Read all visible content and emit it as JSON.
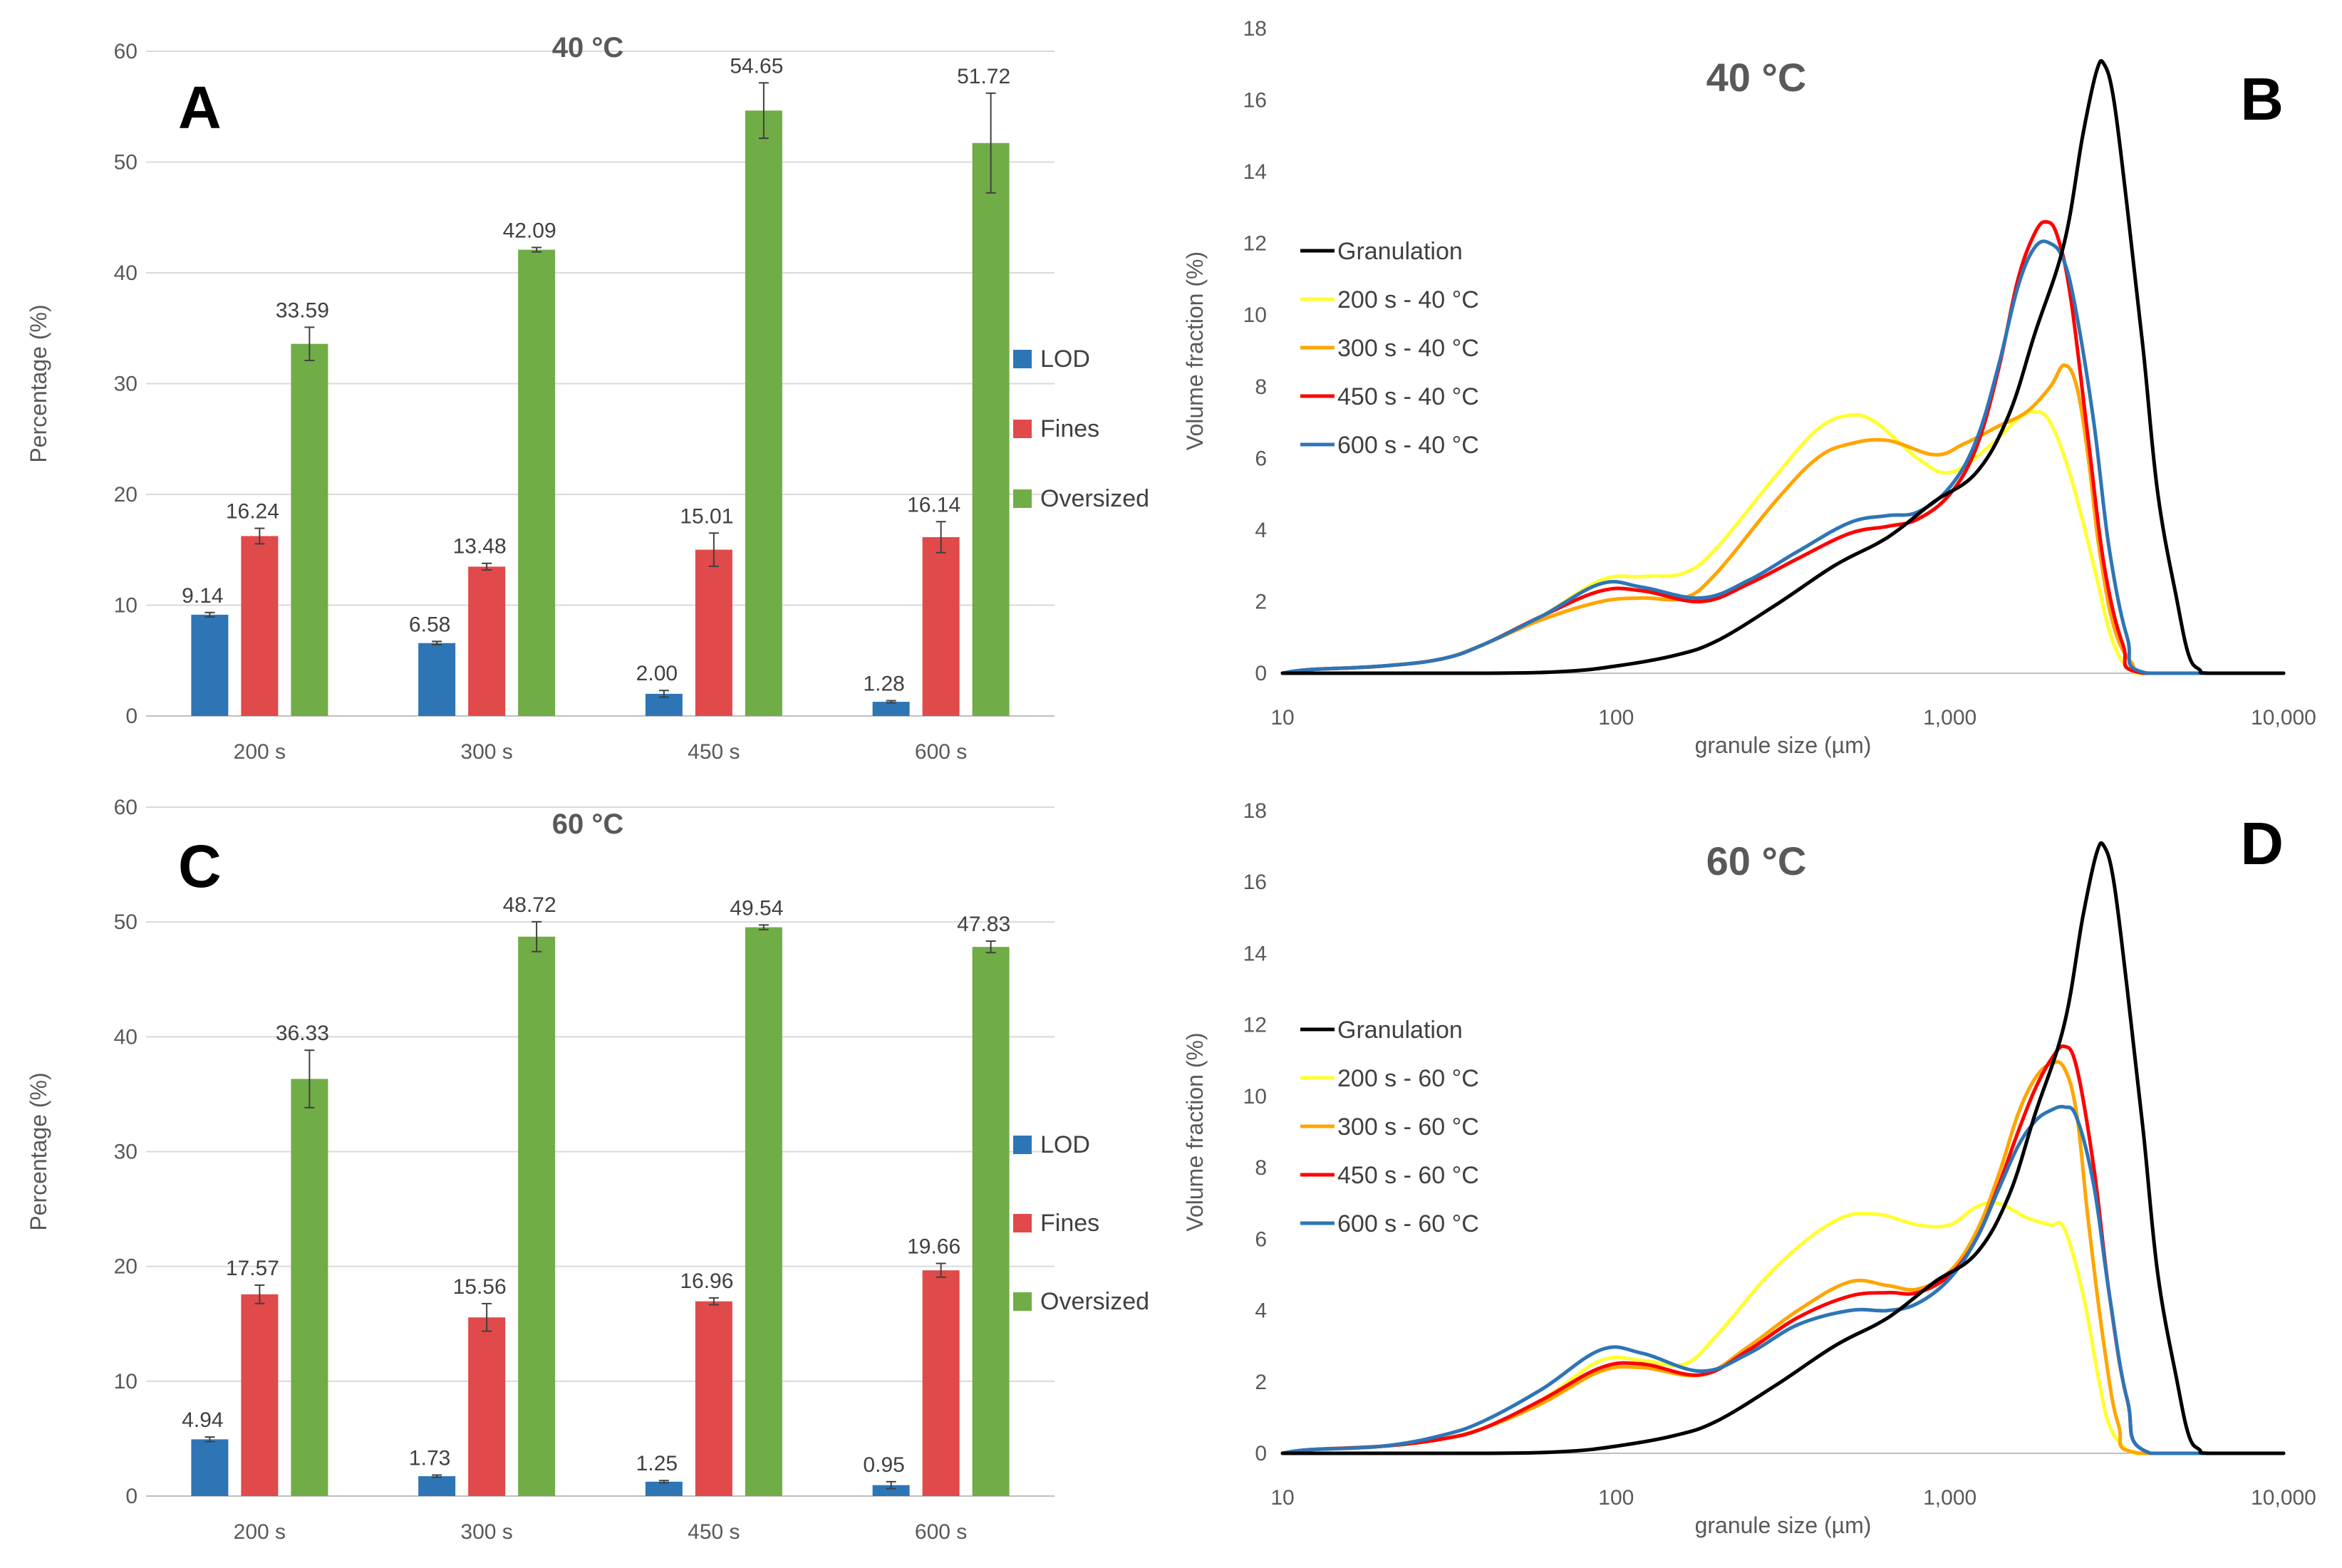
{
  "chart_data": [
    {
      "id": "A",
      "type": "bar",
      "title": "40 °C",
      "panel_letter": "A",
      "categories": [
        "200 s",
        "300 s",
        "450 s",
        "600 s"
      ],
      "series": [
        {
          "name": "LOD",
          "color": "#2E75B6",
          "values": [
            9.14,
            6.58,
            2.0,
            1.28
          ],
          "labels": [
            "9.14",
            "6.58",
            "2.00",
            "1.28"
          ],
          "errors": [
            0.2,
            0.15,
            0.3,
            0.1
          ]
        },
        {
          "name": "Fines",
          "color": "#E04A4A",
          "values": [
            16.24,
            13.48,
            15.01,
            16.14
          ],
          "labels": [
            "16.24",
            "13.48",
            "15.01",
            "16.14"
          ],
          "errors": [
            0.7,
            0.3,
            1.5,
            1.4
          ]
        },
        {
          "name": "Oversized",
          "color": "#70AD47",
          "values": [
            33.59,
            42.09,
            54.65,
            51.72
          ],
          "labels": [
            "33.59",
            "42.09",
            "54.65",
            "51.72"
          ],
          "errors": [
            1.5,
            0.2,
            2.5,
            4.5
          ]
        }
      ],
      "xlabel": "",
      "ylabel": "Percentage (%)",
      "ylim": [
        0,
        60
      ],
      "yticks": [
        "0",
        "10",
        "20",
        "30",
        "40",
        "50",
        "60"
      ],
      "legend": "right"
    },
    {
      "id": "C",
      "type": "bar",
      "title": "60 °C",
      "panel_letter": "C",
      "categories": [
        "200 s",
        "300 s",
        "450 s",
        "600 s"
      ],
      "series": [
        {
          "name": "LOD",
          "color": "#2E75B6",
          "values": [
            4.94,
            1.73,
            1.25,
            0.95
          ],
          "labels": [
            "4.94",
            "1.73",
            "1.25",
            "0.95"
          ],
          "errors": [
            0.2,
            0.1,
            0.1,
            0.3
          ]
        },
        {
          "name": "Fines",
          "color": "#E04A4A",
          "values": [
            17.57,
            15.56,
            16.96,
            19.66
          ],
          "labels": [
            "17.57",
            "15.56",
            "16.96",
            "19.66"
          ],
          "errors": [
            0.8,
            1.2,
            0.3,
            0.6
          ]
        },
        {
          "name": "Oversized",
          "color": "#70AD47",
          "values": [
            36.33,
            48.72,
            49.54,
            47.83
          ],
          "labels": [
            "36.33",
            "48.72",
            "49.54",
            "47.83"
          ],
          "errors": [
            2.5,
            1.3,
            0.2,
            0.5
          ]
        }
      ],
      "xlabel": "",
      "ylabel": "Percentage (%)",
      "ylim": [
        0,
        60
      ],
      "yticks": [
        "0",
        "10",
        "20",
        "30",
        "40",
        "50",
        "60"
      ],
      "legend": "right"
    },
    {
      "id": "B",
      "type": "line",
      "title": "40 °C",
      "panel_letter": "B",
      "xscale": "log",
      "xlim": [
        10,
        10000
      ],
      "ylim": [
        0,
        18
      ],
      "xticks": [
        10,
        100,
        1000,
        10000
      ],
      "xticklabels": [
        "10",
        "100",
        "1,000",
        "10,000"
      ],
      "yticks": [
        "0",
        "2",
        "4",
        "6",
        "8",
        "10",
        "12",
        "14",
        "16",
        "18"
      ],
      "xlabel": "granule size (µm)",
      "ylabel": "Volume fraction (%)",
      "legend": "middle-left",
      "series": [
        {
          "name": "Granulation",
          "color": "#000000",
          "x": [
            10,
            40,
            70,
            100,
            150,
            200,
            300,
            450,
            600,
            700,
            900,
            1200,
            1500,
            1800,
            2200,
            2500,
            2750,
            2900,
            3100,
            3400,
            3800,
            4200,
            4800,
            5200,
            5600,
            6000,
            10000
          ],
          "y": [
            0,
            0,
            0.05,
            0.2,
            0.5,
            0.9,
            1.9,
            3.0,
            3.6,
            4.0,
            4.8,
            5.6,
            7.2,
            9.5,
            12.0,
            15.0,
            16.8,
            17.0,
            16.0,
            13.0,
            9.0,
            5.0,
            2.0,
            0.5,
            0.1,
            0,
            0
          ]
        },
        {
          "name": "200 s - 40 °C",
          "color": "#FFFF33",
          "x": [
            10,
            12,
            20,
            30,
            40,
            60,
            90,
            120,
            160,
            200,
            300,
            400,
            500,
            600,
            800,
            1000,
            1300,
            1600,
            1800,
            2000,
            2300,
            2700,
            3000,
            3300,
            3600,
            4000,
            10000
          ],
          "y": [
            0,
            0.1,
            0.2,
            0.4,
            0.8,
            1.6,
            2.6,
            2.7,
            2.8,
            3.5,
            5.5,
            6.8,
            7.2,
            7.0,
            6.0,
            5.6,
            6.3,
            7.1,
            7.3,
            7.0,
            5.5,
            3.0,
            1.2,
            0.3,
            0.05,
            0,
            0
          ]
        },
        {
          "name": "300 s - 40 °C",
          "color": "#FFA500",
          "x": [
            10,
            12,
            20,
            30,
            40,
            60,
            90,
            120,
            160,
            200,
            300,
            400,
            500,
            650,
            900,
            1100,
            1400,
            1700,
            2000,
            2200,
            2400,
            2600,
            2800,
            3100,
            3500,
            4000,
            10000
          ],
          "y": [
            0,
            0.1,
            0.2,
            0.4,
            0.8,
            1.5,
            2.0,
            2.1,
            2.1,
            2.8,
            4.8,
            6.0,
            6.4,
            6.5,
            6.1,
            6.4,
            6.9,
            7.3,
            8.0,
            8.6,
            8.0,
            6.0,
            3.5,
            1.3,
            0.3,
            0,
            0
          ]
        },
        {
          "name": "450 s - 40 °C",
          "color": "#FF0000",
          "x": [
            10,
            12,
            20,
            30,
            40,
            60,
            90,
            120,
            180,
            250,
            350,
            500,
            650,
            800,
            1000,
            1200,
            1400,
            1600,
            1800,
            1950,
            2100,
            2300,
            2600,
            2900,
            3300,
            3800,
            10000
          ],
          "y": [
            0,
            0.1,
            0.2,
            0.4,
            0.8,
            1.6,
            2.3,
            2.3,
            2.0,
            2.5,
            3.2,
            3.9,
            4.1,
            4.3,
            5.0,
            6.3,
            8.5,
            11.0,
            12.3,
            12.6,
            12.2,
            10.5,
            6.5,
            3.0,
            0.8,
            0,
            0
          ]
        },
        {
          "name": "600 s - 40 °C",
          "color": "#2E75B6",
          "x": [
            10,
            12,
            20,
            30,
            40,
            60,
            90,
            120,
            180,
            250,
            350,
            500,
            650,
            800,
            1000,
            1200,
            1400,
            1600,
            1800,
            2000,
            2200,
            2400,
            2700,
            3000,
            3400,
            3900,
            10000
          ],
          "y": [
            0,
            0.1,
            0.2,
            0.4,
            0.8,
            1.6,
            2.5,
            2.4,
            2.1,
            2.6,
            3.4,
            4.2,
            4.4,
            4.5,
            5.2,
            6.5,
            8.6,
            10.8,
            11.9,
            12.0,
            11.5,
            10.0,
            7.0,
            3.5,
            1.0,
            0,
            0
          ]
        }
      ]
    },
    {
      "id": "D",
      "type": "line",
      "title": "60 °C",
      "panel_letter": "D",
      "xscale": "log",
      "xlim": [
        10,
        10000
      ],
      "ylim": [
        0,
        18
      ],
      "xticks": [
        10,
        100,
        1000,
        10000
      ],
      "xticklabels": [
        "10",
        "100",
        "1,000",
        "10,000"
      ],
      "yticks": [
        "0",
        "2",
        "4",
        "6",
        "8",
        "10",
        "12",
        "14",
        "16",
        "18"
      ],
      "xlabel": "granule size (µm)",
      "ylabel": "Volume fraction (%)",
      "legend": "middle-left",
      "series": [
        {
          "name": "Granulation",
          "color": "#000000",
          "x": [
            10,
            40,
            70,
            100,
            150,
            200,
            300,
            450,
            600,
            700,
            900,
            1200,
            1500,
            1800,
            2200,
            2500,
            2750,
            2900,
            3100,
            3400,
            3800,
            4200,
            4800,
            5200,
            5600,
            6000,
            10000
          ],
          "y": [
            0,
            0,
            0.05,
            0.2,
            0.5,
            0.9,
            1.9,
            3.0,
            3.6,
            4.0,
            4.8,
            5.6,
            7.2,
            9.5,
            12.0,
            15.0,
            16.8,
            17.0,
            16.0,
            13.0,
            9.0,
            5.0,
            2.0,
            0.5,
            0.1,
            0,
            0
          ]
        },
        {
          "name": "200 s - 60 °C",
          "color": "#FFFF33",
          "x": [
            10,
            12,
            20,
            30,
            40,
            60,
            90,
            120,
            160,
            200,
            300,
            450,
            600,
            800,
            1000,
            1200,
            1400,
            1700,
            2000,
            2200,
            2500,
            2800,
            3000,
            3300,
            3600,
            4000,
            10000
          ],
          "y": [
            0,
            0.1,
            0.2,
            0.4,
            0.7,
            1.5,
            2.6,
            2.6,
            2.5,
            3.3,
            5.2,
            6.5,
            6.7,
            6.4,
            6.4,
            6.9,
            7.0,
            6.6,
            6.4,
            6.3,
            4.5,
            2.0,
            0.8,
            0.2,
            0,
            0,
            0
          ]
        },
        {
          "name": "300 s - 60 °C",
          "color": "#FFA500",
          "x": [
            10,
            12,
            20,
            30,
            40,
            60,
            90,
            120,
            180,
            250,
            350,
            500,
            650,
            800,
            1000,
            1200,
            1400,
            1600,
            1800,
            2000,
            2200,
            2400,
            2600,
            2900,
            3200,
            3700,
            10000
          ],
          "y": [
            0,
            0.1,
            0.2,
            0.4,
            0.7,
            1.4,
            2.3,
            2.4,
            2.2,
            3.0,
            4.0,
            4.8,
            4.7,
            4.6,
            5.1,
            6.2,
            7.8,
            9.5,
            10.5,
            10.9,
            10.8,
            9.5,
            6.5,
            3.0,
            0.8,
            0,
            0
          ]
        },
        {
          "name": "450 s - 60 °C",
          "color": "#FF0000",
          "x": [
            10,
            12,
            20,
            30,
            40,
            60,
            90,
            120,
            180,
            250,
            350,
            500,
            650,
            800,
            1000,
            1200,
            1400,
            1600,
            1800,
            2000,
            2200,
            2400,
            2700,
            3000,
            3400,
            4000,
            10000
          ],
          "y": [
            0,
            0.1,
            0.2,
            0.4,
            0.7,
            1.5,
            2.4,
            2.5,
            2.2,
            2.9,
            3.8,
            4.4,
            4.5,
            4.5,
            5.0,
            6.0,
            7.5,
            9.0,
            10.2,
            11.0,
            11.4,
            10.8,
            8.0,
            4.5,
            1.5,
            0,
            0
          ]
        },
        {
          "name": "600 s - 60 °C",
          "color": "#2E75B6",
          "x": [
            10,
            12,
            20,
            30,
            40,
            60,
            90,
            120,
            180,
            250,
            350,
            500,
            650,
            800,
            1000,
            1200,
            1400,
            1600,
            1800,
            2000,
            2200,
            2400,
            2700,
            3000,
            3400,
            4000,
            10000
          ],
          "y": [
            0,
            0.1,
            0.2,
            0.5,
            0.9,
            1.8,
            2.9,
            2.8,
            2.3,
            2.8,
            3.6,
            4.0,
            4.0,
            4.2,
            4.9,
            6.0,
            7.4,
            8.6,
            9.3,
            9.6,
            9.7,
            9.4,
            7.5,
            4.5,
            1.5,
            0,
            0
          ]
        }
      ]
    }
  ]
}
